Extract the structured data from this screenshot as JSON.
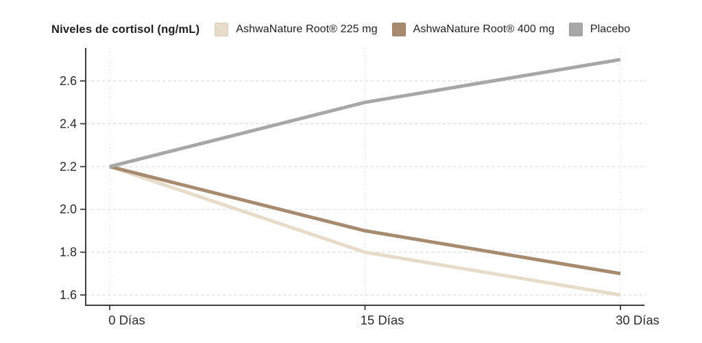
{
  "chart_data": {
    "type": "line",
    "title": "Niveles de cortisol (ng/mL)",
    "xlabel": "",
    "ylabel": "Niveles de cortisol (ng/mL)",
    "categories": [
      "0 Días",
      "15 Días",
      "30 Días"
    ],
    "x_values_days": [
      0,
      15,
      30
    ],
    "series": [
      {
        "id": "ashwanature-root-225mg",
        "name": "AshwaNature Root® 225 mg",
        "color": "#e7dbca",
        "values": [
          2.2,
          1.8,
          1.6
        ]
      },
      {
        "id": "ashwanature-root-400mg",
        "name": "AshwaNature Root® 400 mg",
        "color": "#a78b70",
        "values": [
          2.2,
          1.9,
          1.7
        ]
      },
      {
        "id": "placebo",
        "name": "Placebo",
        "color": "#a7a7a7",
        "values": [
          2.2,
          2.5,
          2.7
        ]
      }
    ],
    "y_ticks": [
      1.6,
      1.8,
      2.0,
      2.2,
      2.4,
      2.6
    ],
    "ylim": [
      1.55,
      2.75
    ],
    "grid": {
      "horizontal": "dashed",
      "vertical": "dotted"
    },
    "legend_position": "top",
    "colors": {
      "axis": "#3e3e3e",
      "gridline": "#dcdcdc",
      "tick_label": "#2b2b2b"
    }
  }
}
